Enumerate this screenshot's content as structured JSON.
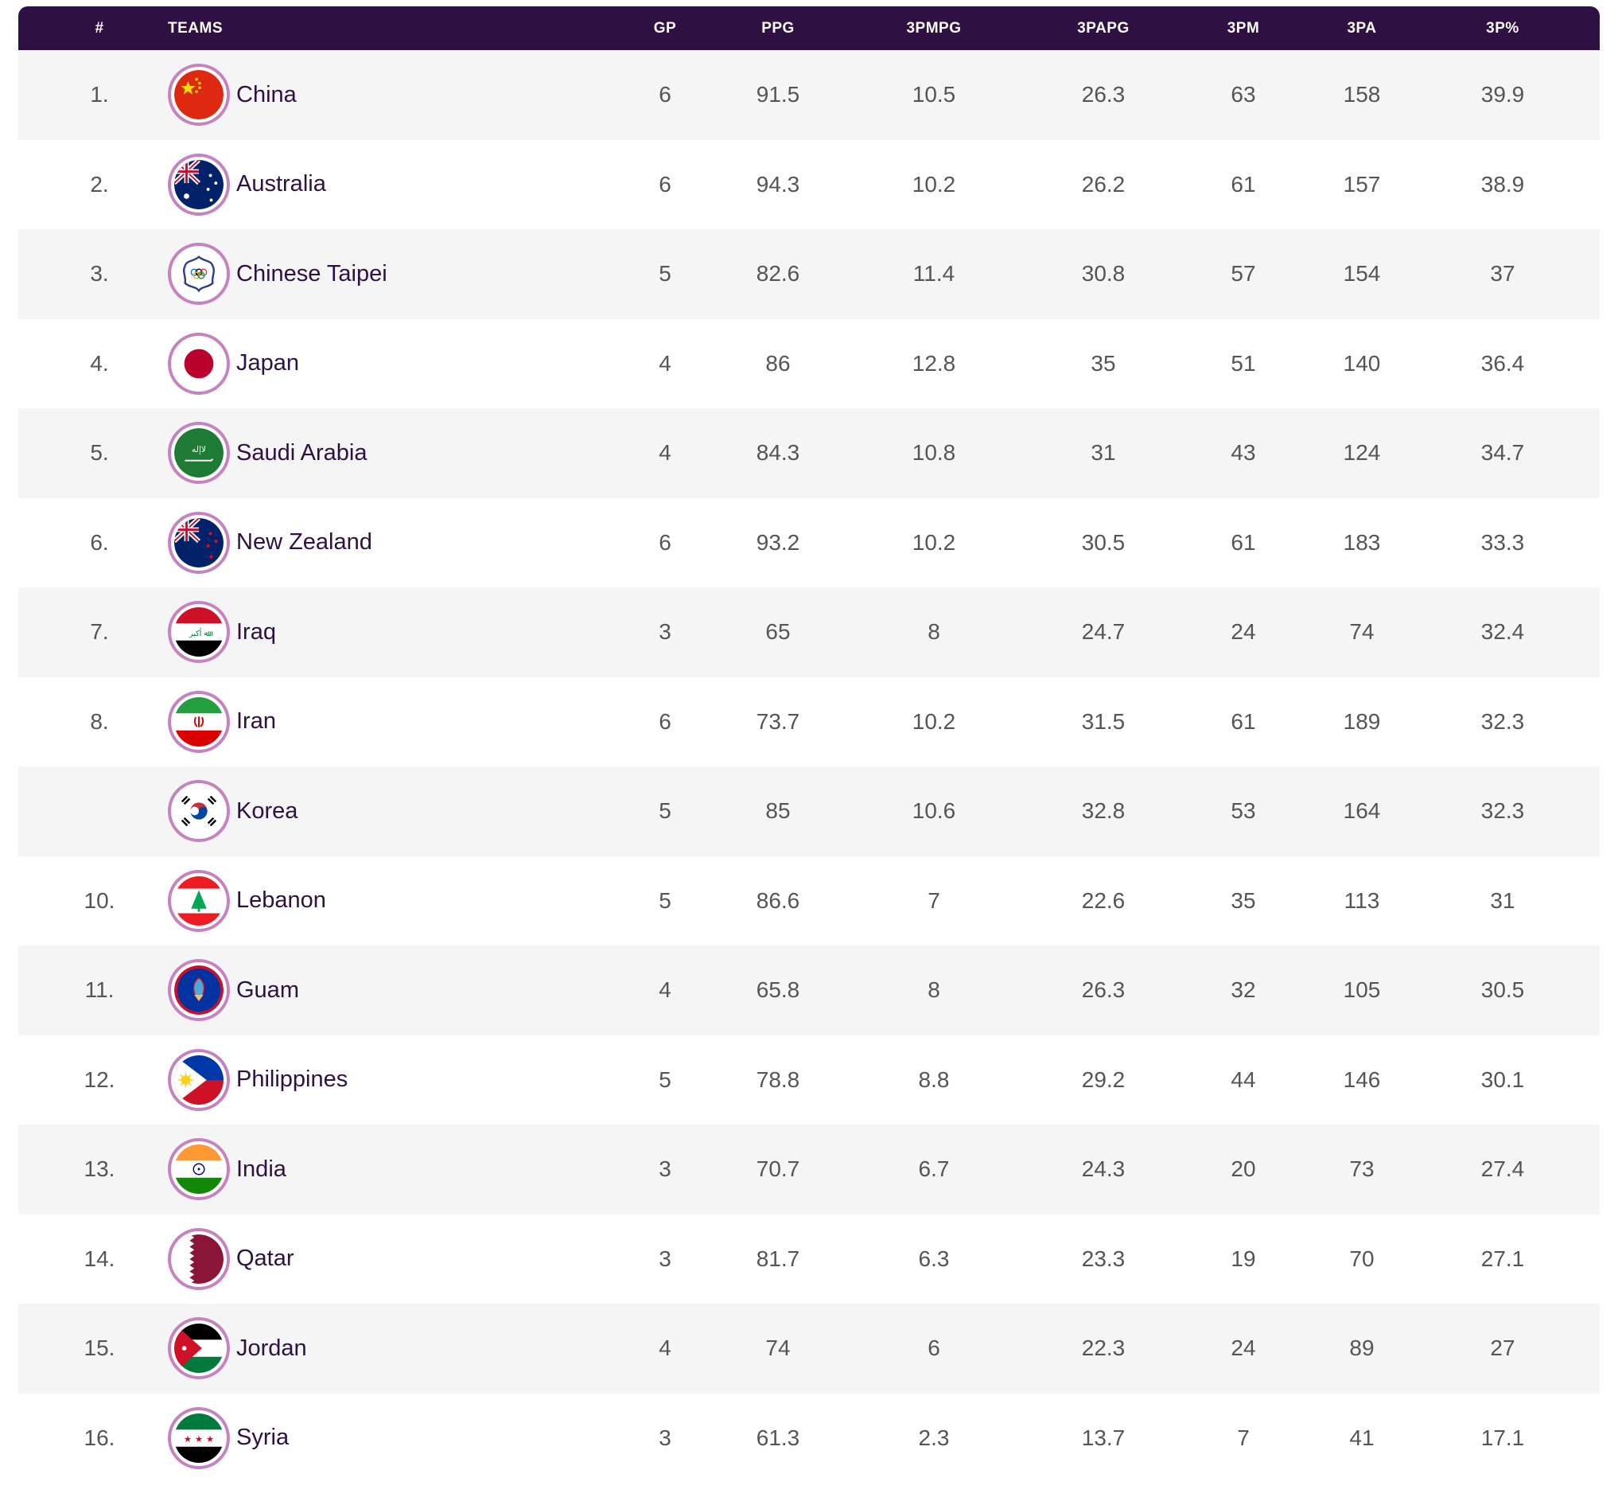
{
  "table": {
    "headers": {
      "rank": "#",
      "teams": "TEAMS",
      "gp": "GP",
      "ppg": "PPG",
      "tpmpg": "3PMPG",
      "tpapg": "3PAPG",
      "tpm": "3PM",
      "tpa": "3PA",
      "tpp": "3P%"
    },
    "rows": [
      {
        "rank": "1.",
        "team": "China",
        "flag": "china-flag-icon",
        "gp": "6",
        "ppg": "91.5",
        "tpmpg": "10.5",
        "tpapg": "26.3",
        "tpm": "63",
        "tpa": "158",
        "tpp": "39.9"
      },
      {
        "rank": "2.",
        "team": "Australia",
        "flag": "australia-flag-icon",
        "gp": "6",
        "ppg": "94.3",
        "tpmpg": "10.2",
        "tpapg": "26.2",
        "tpm": "61",
        "tpa": "157",
        "tpp": "38.9"
      },
      {
        "rank": "3.",
        "team": "Chinese Taipei",
        "flag": "chinese-taipei-flag-icon",
        "gp": "5",
        "ppg": "82.6",
        "tpmpg": "11.4",
        "tpapg": "30.8",
        "tpm": "57",
        "tpa": "154",
        "tpp": "37"
      },
      {
        "rank": "4.",
        "team": "Japan",
        "flag": "japan-flag-icon",
        "gp": "4",
        "ppg": "86",
        "tpmpg": "12.8",
        "tpapg": "35",
        "tpm": "51",
        "tpa": "140",
        "tpp": "36.4"
      },
      {
        "rank": "5.",
        "team": "Saudi Arabia",
        "flag": "saudi-arabia-flag-icon",
        "gp": "4",
        "ppg": "84.3",
        "tpmpg": "10.8",
        "tpapg": "31",
        "tpm": "43",
        "tpa": "124",
        "tpp": "34.7"
      },
      {
        "rank": "6.",
        "team": "New Zealand",
        "flag": "new-zealand-flag-icon",
        "gp": "6",
        "ppg": "93.2",
        "tpmpg": "10.2",
        "tpapg": "30.5",
        "tpm": "61",
        "tpa": "183",
        "tpp": "33.3"
      },
      {
        "rank": "7.",
        "team": "Iraq",
        "flag": "iraq-flag-icon",
        "gp": "3",
        "ppg": "65",
        "tpmpg": "8",
        "tpapg": "24.7",
        "tpm": "24",
        "tpa": "74",
        "tpp": "32.4"
      },
      {
        "rank": "8.",
        "team": "Iran",
        "flag": "iran-flag-icon",
        "gp": "6",
        "ppg": "73.7",
        "tpmpg": "10.2",
        "tpapg": "31.5",
        "tpm": "61",
        "tpa": "189",
        "tpp": "32.3"
      },
      {
        "rank": "",
        "team": "Korea",
        "flag": "korea-flag-icon",
        "gp": "5",
        "ppg": "85",
        "tpmpg": "10.6",
        "tpapg": "32.8",
        "tpm": "53",
        "tpa": "164",
        "tpp": "32.3"
      },
      {
        "rank": "10.",
        "team": "Lebanon",
        "flag": "lebanon-flag-icon",
        "gp": "5",
        "ppg": "86.6",
        "tpmpg": "7",
        "tpapg": "22.6",
        "tpm": "35",
        "tpa": "113",
        "tpp": "31"
      },
      {
        "rank": "11.",
        "team": "Guam",
        "flag": "guam-flag-icon",
        "gp": "4",
        "ppg": "65.8",
        "tpmpg": "8",
        "tpapg": "26.3",
        "tpm": "32",
        "tpa": "105",
        "tpp": "30.5"
      },
      {
        "rank": "12.",
        "team": "Philippines",
        "flag": "philippines-flag-icon",
        "gp": "5",
        "ppg": "78.8",
        "tpmpg": "8.8",
        "tpapg": "29.2",
        "tpm": "44",
        "tpa": "146",
        "tpp": "30.1"
      },
      {
        "rank": "13.",
        "team": "India",
        "flag": "india-flag-icon",
        "gp": "3",
        "ppg": "70.7",
        "tpmpg": "6.7",
        "tpapg": "24.3",
        "tpm": "20",
        "tpa": "73",
        "tpp": "27.4"
      },
      {
        "rank": "14.",
        "team": "Qatar",
        "flag": "qatar-flag-icon",
        "gp": "3",
        "ppg": "81.7",
        "tpmpg": "6.3",
        "tpapg": "23.3",
        "tpm": "19",
        "tpa": "70",
        "tpp": "27.1"
      },
      {
        "rank": "15.",
        "team": "Jordan",
        "flag": "jordan-flag-icon",
        "gp": "4",
        "ppg": "74",
        "tpmpg": "6",
        "tpapg": "22.3",
        "tpm": "24",
        "tpa": "89",
        "tpp": "27"
      },
      {
        "rank": "16.",
        "team": "Syria",
        "flag": "syria-flag-icon",
        "gp": "3",
        "ppg": "61.3",
        "tpmpg": "2.3",
        "tpapg": "13.7",
        "tpm": "7",
        "tpa": "41",
        "tpp": "17.1"
      }
    ]
  },
  "colors": {
    "header_bg": "#2e1142",
    "row_shade": "#f5f5f5",
    "flag_ring": "#c583bf",
    "team_text": "#2e1142",
    "stat_text": "#555555"
  }
}
